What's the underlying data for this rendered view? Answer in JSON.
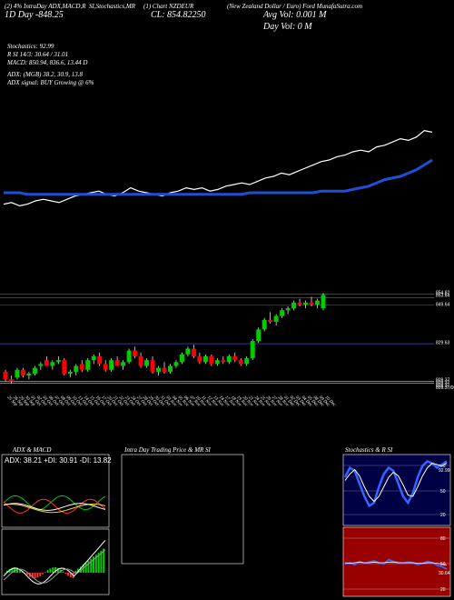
{
  "header": {
    "tagline": "(2) 4% IntraDay ADX,MACD,R",
    "tagline2": "SI,Stochastics,MR",
    "tagline3": "(1) Chart NZDEUR",
    "title": "(New Zealand Dollar / Euro) Ford MunafaSutra.com",
    "day_change": "1D  Day  -848.25",
    "close": "CL: 854.82250",
    "avg_vol": "Avg Vol: 0.001 M",
    "day_vol": "Day Vol: 0   M"
  },
  "indicators": {
    "stochastics": "Stochastics: 92.99",
    "rsi": "R                    SI 14/3: 30.64  /  31.01",
    "macd": "MACD: 850.94,  836.6,  13.44  D",
    "adx": "ADX:                             (MGB) 38.2,  30.9,  13.8",
    "adx_signal": "ADX   signal:                               BUY Growing @ 6%"
  },
  "price_labels": [
    "854.82",
    "853.64",
    "849.64",
    "829.63",
    "809.37",
    "809.37",
    "809.37",
    "809.37/00"
  ],
  "dates": [
    "25 Sep",
    "26 Sep",
    "29 Sep",
    "30 Sep",
    "01 Oct",
    "02 Oct",
    "03 Oct",
    "06 Oct",
    "07 Oct",
    "08 Oct",
    "09 Oct",
    "10 Oct",
    "13 Oct",
    "14 Oct",
    "15 Oct",
    "16 Oct",
    "17 Oct",
    "20 Oct",
    "21 Oct",
    "22 Oct",
    "23 Oct",
    "24 Oct",
    "27 Oct",
    "28 Oct",
    "29 Oct",
    "30 Oct",
    "31 Oct",
    "03 Nov",
    "04 Nov",
    "05 Nov",
    "06 Nov",
    "07 Nov",
    "10 Nov",
    "11 Nov",
    "12 Nov",
    "13 Nov",
    "14 Nov",
    "17 Nov",
    "18 Nov",
    "19 Nov",
    "20 Nov",
    "21 Nov",
    "24 Nov",
    "25 Nov",
    "26 Nov",
    "27 Nov",
    "28 Nov",
    "01 Dec",
    "02 Dec",
    "03 Dec",
    "04 Dec",
    "05 Dec",
    "08 Dec",
    "09 Dec",
    "10 Dec"
  ],
  "panels": {
    "adx_title": "ADX  & MACD",
    "adx_readout": "ADX: 38.21  +DI: 30.91  -DI: 13.82",
    "intraday_title": "Intra  Day Trading Price  & MR                 SI",
    "stoch_title": "Stochastics & R                 SI",
    "stoch_levels": [
      "80",
      "50",
      "20"
    ],
    "rsi_levels": [
      "80",
      "50",
      "20"
    ],
    "stoch_value": "92.99",
    "rsi_value": "30.64"
  },
  "colors": {
    "up": "#00cc00",
    "down": "#ff0000",
    "ma": "#1f4fd8",
    "stoch_bg": "#000044",
    "rsi_bg": "#990000"
  },
  "chart_data": [
    {
      "type": "line",
      "title": "",
      "series": [
        {
          "values": [
            28,
            29,
            27,
            28,
            30,
            31,
            30,
            29,
            31,
            33,
            34,
            35,
            36,
            34,
            33,
            35,
            38,
            36,
            35,
            34,
            33,
            35,
            36,
            38,
            37,
            38,
            36,
            37,
            39,
            40,
            41,
            40,
            42,
            44,
            45,
            47,
            46,
            48,
            50,
            52,
            54,
            55,
            57,
            58,
            60,
            61,
            60,
            63,
            64,
            66,
            68,
            67,
            69,
            73,
            72
          ]
        },
        {
          "values": [
            35,
            35,
            35,
            34,
            34,
            34,
            34,
            34,
            34,
            34,
            34,
            34,
            34,
            34,
            34,
            34,
            34,
            34,
            34,
            34,
            34,
            34,
            34,
            34,
            34,
            34,
            34,
            34,
            34,
            34,
            34,
            35,
            35,
            35,
            35,
            35,
            35,
            35,
            35,
            35,
            36,
            36,
            36,
            36,
            37,
            38,
            39,
            41,
            43,
            44,
            45,
            47,
            49,
            52,
            55
          ]
        }
      ]
    },
    {
      "type": "bar",
      "title": "",
      "categories": [
        "25 Sep",
        "26 Sep",
        "29 Sep",
        "30 Sep",
        "01 Oct",
        "02 Oct",
        "03 Oct",
        "06 Oct",
        "07 Oct",
        "08 Oct",
        "09 Oct",
        "10 Oct",
        "13 Oct",
        "14 Oct",
        "15 Oct",
        "16 Oct",
        "17 Oct",
        "20 Oct",
        "21 Oct",
        "22 Oct",
        "23 Oct",
        "24 Oct",
        "27 Oct",
        "28 Oct",
        "29 Oct",
        "30 Oct",
        "31 Oct",
        "03 Nov",
        "04 Nov",
        "05 Nov",
        "06 Nov",
        "07 Nov",
        "10 Nov",
        "11 Nov",
        "12 Nov",
        "13 Nov",
        "14 Nov",
        "17 Nov",
        "18 Nov",
        "19 Nov",
        "20 Nov",
        "21 Nov",
        "24 Nov",
        "25 Nov",
        "26 Nov",
        "27 Nov",
        "28 Nov",
        "01 Dec",
        "02 Dec",
        "03 Dec",
        "04 Dec",
        "05 Dec",
        "08 Dec",
        "09 Dec",
        "10 Dec"
      ],
      "ohlc": [
        [
          815,
          816,
          810,
          811
        ],
        [
          811,
          813,
          809,
          810
        ],
        [
          812,
          817,
          811,
          816
        ],
        [
          816,
          817,
          812,
          813
        ],
        [
          813,
          815,
          811,
          814
        ],
        [
          814,
          818,
          813,
          817
        ],
        [
          818,
          820,
          816,
          819
        ],
        [
          821,
          823,
          818,
          818
        ],
        [
          818,
          821,
          816,
          820
        ],
        [
          820,
          823,
          819,
          821
        ],
        [
          821,
          822,
          813,
          814
        ],
        [
          814,
          816,
          812,
          815
        ],
        [
          815,
          819,
          813,
          818
        ],
        [
          819,
          821,
          815,
          816
        ],
        [
          816,
          822,
          815,
          821
        ],
        [
          821,
          824,
          819,
          823
        ],
        [
          823,
          825,
          818,
          819
        ],
        [
          819,
          821,
          815,
          816
        ],
        [
          816,
          822,
          815,
          821
        ],
        [
          821,
          823,
          818,
          818
        ],
        [
          818,
          821,
          816,
          820
        ],
        [
          820,
          827,
          819,
          826
        ],
        [
          826,
          828,
          822,
          823
        ],
        [
          823,
          825,
          817,
          818
        ],
        [
          818,
          822,
          817,
          821
        ],
        [
          821,
          823,
          814,
          815
        ],
        [
          815,
          818,
          813,
          817
        ],
        [
          817,
          820,
          814,
          815
        ],
        [
          815,
          819,
          814,
          818
        ],
        [
          818,
          821,
          817,
          820
        ],
        [
          820,
          825,
          819,
          824
        ],
        [
          824,
          828,
          823,
          827
        ],
        [
          827,
          829,
          822,
          823
        ],
        [
          823,
          825,
          819,
          820
        ],
        [
          820,
          824,
          819,
          823
        ],
        [
          823,
          824,
          818,
          819
        ],
        [
          819,
          822,
          818,
          821
        ],
        [
          821,
          823,
          819,
          820
        ],
        [
          820,
          824,
          819,
          823
        ],
        [
          823,
          825,
          820,
          821
        ],
        [
          821,
          822,
          818,
          819
        ],
        [
          819,
          823,
          818,
          822
        ],
        [
          822,
          832,
          821,
          831
        ],
        [
          831,
          838,
          830,
          837
        ],
        [
          837,
          843,
          836,
          842
        ],
        [
          842,
          846,
          840,
          841
        ],
        [
          841,
          845,
          839,
          844
        ],
        [
          844,
          848,
          843,
          847
        ],
        [
          847,
          849,
          845,
          848
        ],
        [
          848,
          852,
          847,
          851
        ],
        [
          851,
          853,
          849,
          850
        ],
        [
          850,
          852,
          848,
          851
        ],
        [
          851,
          854,
          849,
          850
        ],
        [
          850,
          853,
          848,
          852
        ],
        [
          848,
          856,
          847,
          855
        ]
      ],
      "ylim": [
        805,
        858
      ]
    }
  ]
}
